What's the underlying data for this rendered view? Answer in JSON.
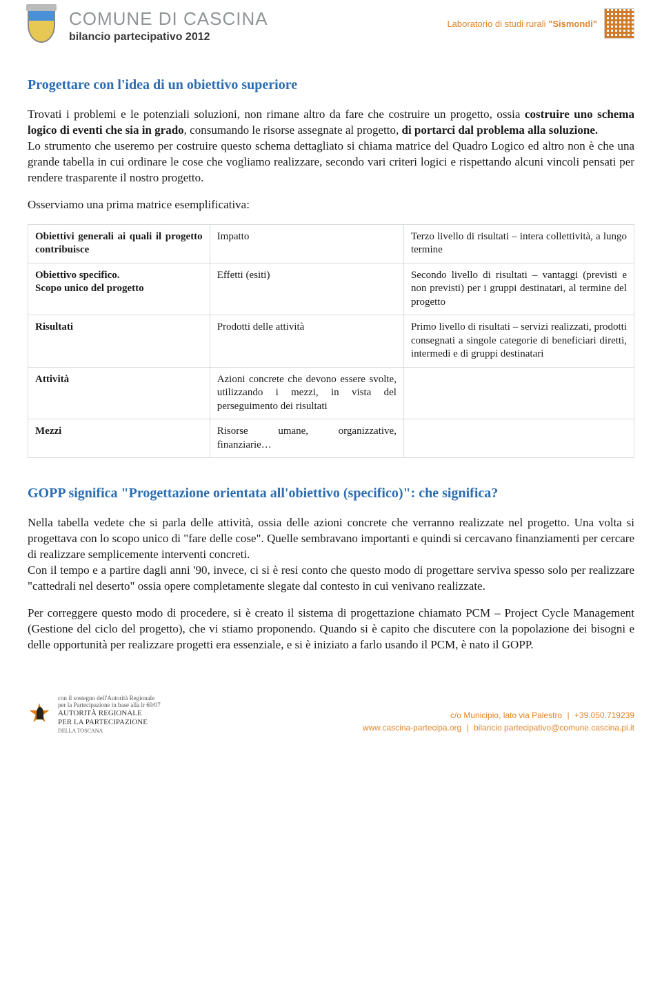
{
  "header": {
    "org_name": "COMUNE DI CASCINA",
    "subtitle": "bilancio partecipativo 2012",
    "lab_prefix": "Laboratorio di studi rurali ",
    "lab_name": "\"Sismondi\""
  },
  "section1": {
    "title": "Progettare con l'idea di un obiettivo superiore",
    "p1_a": "Trovati i problemi e le potenziali soluzioni, non rimane altro da fare che costruire un progetto, ossia ",
    "p1_b": "costruire uno schema logico di eventi che sia in grado",
    "p1_c": ", consumando le risorse assegnate al progetto, ",
    "p1_d": "di portarci dal problema alla soluzione.",
    "p2": "Lo strumento che useremo per costruire questo schema dettagliato si chiama matrice del Quadro Logico ed altro non è che una grande tabella in cui ordinare le cose che vogliamo realizzare, secondo vari criteri logici e rispettando alcuni vincoli pensati per rendere trasparente il nostro progetto.",
    "p3": "Osserviamo una prima matrice esemplificativa:"
  },
  "matrix": {
    "rows": [
      {
        "c1": "Obiettivi generali ai quali il progetto contribuisce",
        "c2": "Impatto",
        "c3": "Terzo livello di risultati – intera collettività, a lungo termine"
      },
      {
        "c1": "Obiettivo specifico.\nScopo unico del progetto",
        "c2": "Effetti (esiti)",
        "c3": "Secondo livello di risultati – vantaggi (previsti e non previsti) per i gruppi destinatari, al termine del progetto"
      },
      {
        "c1": "Risultati",
        "c2": "Prodotti delle attività",
        "c3": "Primo livello di risultati – servizi realizzati, prodotti consegnati a singole categorie di beneficiari diretti, intermedi e di gruppi destinatari"
      },
      {
        "c1": "Attività",
        "c2": "Azioni concrete che devono essere svolte, utilizzando i mezzi, in vista del perseguimento dei risultati",
        "c3": ""
      },
      {
        "c1": "Mezzi",
        "c2": "Risorse umane, organizzative, finanziarie…",
        "c3": ""
      }
    ]
  },
  "section2": {
    "title": "GOPP significa \"Progettazione orientata all'obiettivo (specifico)\": che significa?",
    "p1": "Nella tabella vedete che si parla delle attività, ossia delle azioni concrete che verranno realizzate nel progetto. Una volta si progettava con lo scopo unico di \"fare delle cose\". Quelle sembravano importanti e quindi si cercavano finanziamenti per cercare di realizzare semplicemente interventi concreti.",
    "p2": "Con il tempo e a partire dagli anni '90, invece, ci si è resi conto che questo modo di progettare serviva spesso solo per realizzare \"cattedrali nel deserto\" ossia opere completamente slegate dal contesto in cui venivano realizzate.",
    "p3": "Per correggere questo modo di procedere, si è creato il sistema di progettazione chiamato PCM – Project Cycle Management (Gestione del ciclo del progetto), che vi stiamo proponendo. Quando si è capito che discutere con la popolazione dei bisogni e delle opportunità per realizzare progetti era essenziale, e si è iniziato a farlo usando il PCM, è nato il GOPP."
  },
  "footer": {
    "sponsor_line1": "con il sostegno dell'Autorità Regionale",
    "sponsor_line2": "per la Partecipazione in base alla lr 69/07",
    "sponsor_line3": "AUTORITÀ REGIONALE",
    "sponsor_line4": "PER LA PARTECIPAZIONE",
    "sponsor_line5": "DELLA TOSCANA",
    "address": "c/o Municipio, lato via Palestro",
    "phone": "+39.050.719239",
    "url": "www.cascina-partecipa.org",
    "email": "bilancio partecipativo@comune.cascina.pi.it"
  },
  "styling": {
    "heading_color": "#2a6db3",
    "accent_orange": "#e0852a",
    "header_gray": "#8f9497",
    "border_color": "#d7dce0",
    "body_fontsize": 17,
    "table_fontsize": 15,
    "heading_fontsize": 20
  }
}
